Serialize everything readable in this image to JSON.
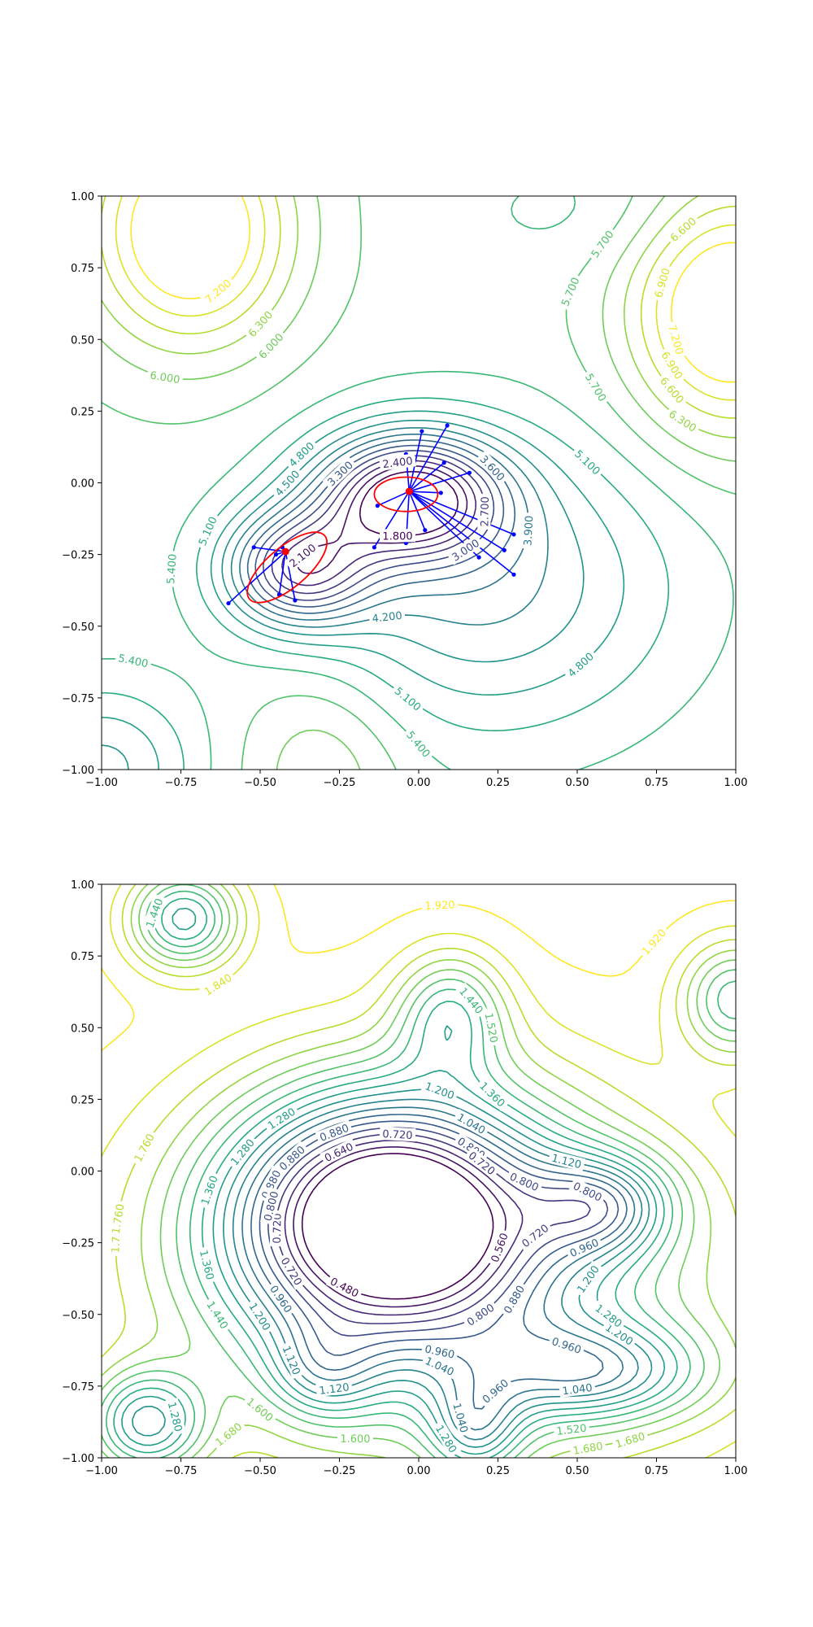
{
  "chart_data": [
    {
      "type": "contour",
      "xlim": [
        -1,
        1
      ],
      "ylim": [
        -1,
        1
      ],
      "xticks": [
        "−1.00",
        "−0.75",
        "−0.50",
        "−0.25",
        "0.00",
        "0.25",
        "0.50",
        "0.75",
        "1.00"
      ],
      "yticks": [
        "−1.00",
        "−0.75",
        "−0.50",
        "−0.25",
        "0.00",
        "0.25",
        "0.50",
        "0.75",
        "1.00"
      ],
      "colormap": "viridis",
      "levels": [
        1.8,
        2.1,
        2.4,
        2.7,
        3.0,
        3.3,
        3.6,
        3.9,
        4.2,
        4.5,
        4.8,
        5.1,
        5.4,
        5.7,
        6.0,
        6.3,
        6.6,
        6.9,
        7.2
      ],
      "contour_labels": [
        "5.100",
        "5.400",
        "7.200",
        "6.900",
        "6.600",
        "6.000",
        "5.700",
        "6.300",
        "5.400",
        "4.800",
        "5.100",
        "3.900",
        "3.600",
        "2.100",
        "2.400",
        "1.800",
        "4.500",
        "3.300",
        "4.200",
        "2.700",
        "3.000",
        "5.100",
        "5.400",
        "4.800",
        "6.600",
        "7.200",
        "6.900",
        "6.300",
        "6.000",
        "5.700",
        "5.700"
      ],
      "centers": [
        {
          "x": -0.42,
          "y": -0.24,
          "color": "#ff0000"
        },
        {
          "x": -0.03,
          "y": -0.03,
          "color": "#ff0000"
        }
      ],
      "ellipses": [
        {
          "cx": -0.415,
          "cy": -0.295,
          "rx": 0.155,
          "ry": 0.07,
          "angle_deg": 40,
          "color": "#ff0000"
        },
        {
          "cx": -0.04,
          "cy": -0.04,
          "rx": 0.1,
          "ry": 0.06,
          "angle_deg": 0,
          "color": "#ff0000"
        }
      ],
      "rays": [
        {
          "center": 0,
          "points": [
            [
              -0.52,
              -0.225
            ],
            [
              -0.45,
              -0.25
            ],
            [
              -0.43,
              -0.225
            ],
            [
              -0.44,
              -0.39
            ],
            [
              -0.39,
              -0.41
            ],
            [
              -0.6,
              -0.42
            ]
          ]
        },
        {
          "center": 1,
          "points": [
            [
              0.01,
              0.18
            ],
            [
              0.09,
              0.2
            ],
            [
              0.08,
              0.07
            ],
            [
              0.16,
              0.035
            ],
            [
              -0.04,
              0.1
            ],
            [
              -0.13,
              -0.08
            ],
            [
              0.07,
              -0.035
            ],
            [
              -0.14,
              -0.225
            ],
            [
              -0.04,
              -0.21
            ],
            [
              0.02,
              -0.165
            ],
            [
              0.3,
              -0.18
            ],
            [
              0.27,
              -0.235
            ],
            [
              0.19,
              -0.26
            ],
            [
              0.3,
              -0.32
            ]
          ]
        }
      ],
      "ray_color": "#0000ff"
    },
    {
      "type": "contour",
      "xlim": [
        -1,
        1
      ],
      "ylim": [
        -1,
        1
      ],
      "xticks": [
        "−1.00",
        "−0.75",
        "−0.50",
        "−0.25",
        "0.00",
        "0.25",
        "0.50",
        "0.75",
        "1.00"
      ],
      "yticks": [
        "−1.00",
        "−0.75",
        "−0.50",
        "−0.25",
        "0.00",
        "0.25",
        "0.50",
        "0.75",
        "1.00"
      ],
      "colormap": "viridis",
      "levels": [
        0.48,
        0.56,
        0.64,
        0.72,
        0.8,
        0.88,
        0.96,
        1.04,
        1.12,
        1.2,
        1.28,
        1.36,
        1.44,
        1.52,
        1.6,
        1.68,
        1.76,
        1.84,
        1.92
      ],
      "contour_labels": [
        "1.760",
        "1.920",
        "1.680",
        "1.760",
        "1.600",
        "1.440",
        "1.200",
        "0.800",
        "0.880",
        "1.360",
        "0.800",
        "1.040",
        "0.960",
        "1.280",
        "1.200",
        "1.280",
        "1.520",
        "1.440",
        "1.760",
        "1.920",
        "1.840",
        "1.680",
        "1.600",
        "1.520",
        "1.280",
        "0.880",
        "0.720",
        "0.800",
        "0.960",
        "1.360",
        "1.120",
        "0.560",
        "0.480",
        "0.720",
        "0.640",
        "1.040",
        "1.440",
        "1.680",
        "0.960",
        "0.880",
        "0.800",
        "0.720",
        "0.720",
        "1.040",
        "0.960",
        "1.280",
        "1.200",
        "0.960",
        "0.880",
        "0.800",
        "1.200",
        "1.360",
        "1.280",
        "1.040",
        "1.120",
        "0.720",
        "1.120"
      ]
    }
  ]
}
